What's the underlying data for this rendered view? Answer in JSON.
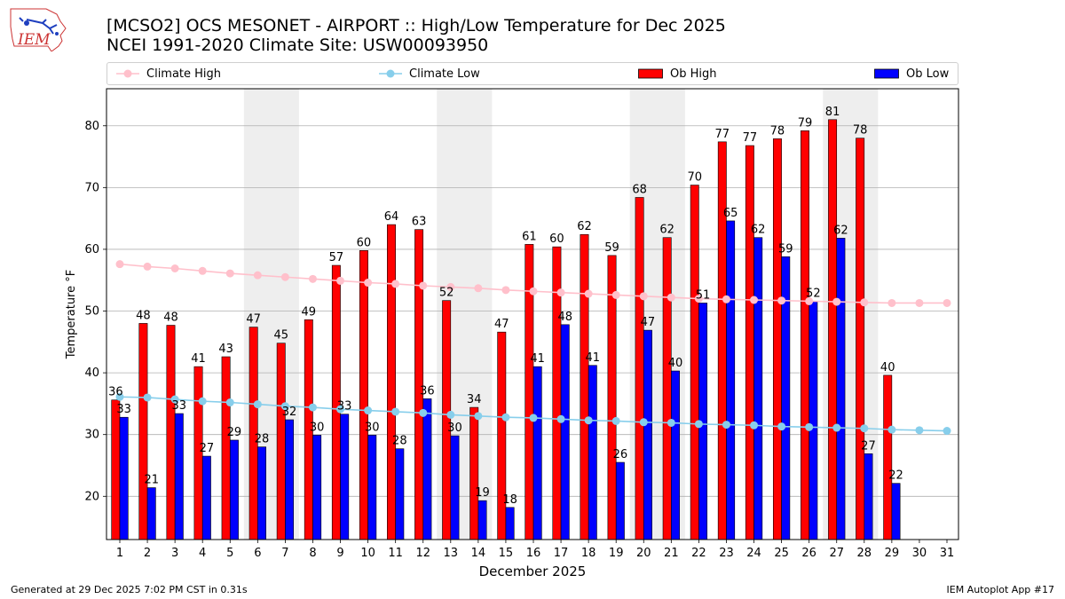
{
  "header": {
    "logo_text": "IEM",
    "title_line1": "[MCSO2] OCS MESONET - AIRPORT :: High/Low Temperature for Dec 2025",
    "title_line2": "NCEI 1991-2020 Climate Site: USW00093950"
  },
  "legend": {
    "items": [
      "Climate High",
      "Climate Low",
      "Ob High",
      "Ob Low"
    ],
    "placement": "top, horizontal across full width"
  },
  "colors": {
    "ob_high": "#ff0000",
    "ob_low": "#0000ff",
    "climate_high": "#ffc0cb",
    "climate_low": "#87ceeb",
    "weekend_shading": "#eeeeee",
    "grid": "#b0b0b0"
  },
  "chart_data": {
    "type": "bar",
    "xlabel": "December 2025",
    "ylabel": "Temperature °F",
    "ylim": [
      13,
      86
    ],
    "yticks": [
      20,
      30,
      40,
      50,
      60,
      70,
      80
    ],
    "grid": "horizontal",
    "categories": [
      "1",
      "2",
      "3",
      "4",
      "5",
      "6",
      "7",
      "8",
      "9",
      "10",
      "11",
      "12",
      "13",
      "14",
      "15",
      "16",
      "17",
      "18",
      "19",
      "20",
      "21",
      "22",
      "23",
      "24",
      "25",
      "26",
      "27",
      "28",
      "29",
      "30",
      "31"
    ],
    "shaded_days": [
      [
        6,
        7
      ],
      [
        13,
        14
      ],
      [
        20,
        21
      ],
      [
        27,
        28
      ]
    ],
    "series": [
      {
        "name": "Ob High",
        "kind": "bar",
        "values": [
          35.6,
          48,
          47.7,
          41,
          42.6,
          47.4,
          44.8,
          48.6,
          57.4,
          59.8,
          64,
          63.2,
          51.7,
          34.4,
          46.6,
          60.8,
          60.4,
          62.4,
          59,
          68.4,
          61.9,
          70.4,
          77.4,
          76.8,
          77.9,
          79.2,
          81,
          78,
          39.6,
          null,
          null
        ],
        "labels": [
          "36",
          "48",
          "48",
          "41",
          "43",
          "47",
          "45",
          "49",
          "57",
          "60",
          "64",
          "63",
          "52",
          "34",
          "47",
          "61",
          "60",
          "62",
          "59",
          "68",
          "62",
          "70",
          "77",
          "77",
          "78",
          "79",
          "81",
          "78",
          "40",
          "",
          ""
        ]
      },
      {
        "name": "Ob Low",
        "kind": "bar",
        "values": [
          32.8,
          21.4,
          33.4,
          26.5,
          29.1,
          28,
          32.4,
          29.9,
          33.3,
          29.9,
          27.7,
          35.8,
          29.8,
          19.3,
          18.2,
          41,
          47.8,
          41.2,
          25.5,
          46.9,
          40.3,
          51.3,
          64.6,
          61.9,
          58.8,
          51.6,
          61.8,
          26.9,
          22.1,
          null,
          null
        ],
        "labels": [
          "33",
          "21",
          "33",
          "27",
          "29",
          "28",
          "32",
          "30",
          "33",
          "30",
          "28",
          "36",
          "30",
          "19",
          "18",
          "41",
          "48",
          "41",
          "26",
          "47",
          "40",
          "51",
          "65",
          "62",
          "59",
          "52",
          "62",
          "27",
          "22",
          "",
          ""
        ]
      },
      {
        "name": "Climate High",
        "kind": "line",
        "values": [
          57.6,
          57.2,
          56.9,
          56.5,
          56.1,
          55.8,
          55.5,
          55.2,
          54.9,
          54.6,
          54.4,
          54.1,
          53.9,
          53.7,
          53.4,
          53.2,
          53,
          52.8,
          52.6,
          52.4,
          52.2,
          52,
          51.9,
          51.8,
          51.7,
          51.6,
          51.5,
          51.4,
          51.3,
          51.3,
          51.3
        ]
      },
      {
        "name": "Climate Low",
        "kind": "line",
        "values": [
          36.1,
          36,
          35.7,
          35.4,
          35.2,
          34.9,
          34.6,
          34.4,
          34.1,
          33.9,
          33.7,
          33.5,
          33.2,
          33,
          32.8,
          32.7,
          32.5,
          32.3,
          32.2,
          32,
          31.9,
          31.7,
          31.6,
          31.5,
          31.3,
          31.2,
          31.1,
          31,
          30.8,
          30.7,
          30.6
        ]
      }
    ]
  },
  "footer": {
    "left": "Generated at 29 Dec 2025 7:02 PM CST in 0.31s",
    "right": "IEM Autoplot App #17"
  }
}
